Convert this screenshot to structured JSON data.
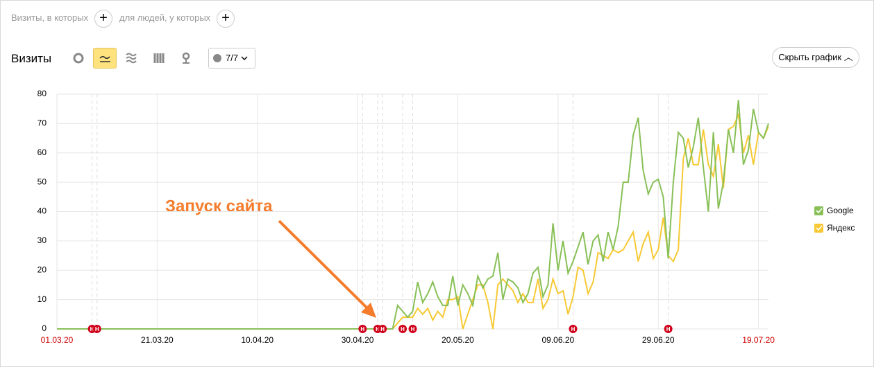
{
  "filters": {
    "visits_label": "Визиты, в которых",
    "people_label": "для людей, у которых"
  },
  "toolbar": {
    "title": "Визиты",
    "notes_filter": "7/7",
    "hide_chart": "Скрыть график"
  },
  "annotation": "Запуск сайта",
  "note_label": "Н",
  "chart_data": {
    "type": "line",
    "categories": [
      "01.03.20",
      null,
      null,
      null,
      null,
      null,
      null,
      null,
      null,
      null,
      null,
      null,
      null,
      null,
      null,
      null,
      null,
      null,
      null,
      null,
      "21.03.20",
      null,
      null,
      null,
      null,
      null,
      null,
      null,
      null,
      null,
      null,
      null,
      null,
      null,
      null,
      null,
      null,
      null,
      null,
      null,
      "10.04.20",
      null,
      null,
      null,
      null,
      null,
      null,
      null,
      null,
      null,
      null,
      null,
      null,
      null,
      null,
      null,
      null,
      null,
      null,
      null,
      "30.04.20",
      null,
      null,
      null,
      null,
      null,
      null,
      null,
      null,
      null,
      null,
      null,
      null,
      null,
      null,
      null,
      null,
      null,
      null,
      null,
      "20.05.20",
      null,
      null,
      null,
      null,
      null,
      null,
      null,
      null,
      null,
      null,
      null,
      null,
      null,
      null,
      null,
      null,
      null,
      null,
      null,
      "09.06.20",
      null,
      null,
      null,
      null,
      null,
      null,
      null,
      null,
      null,
      null,
      null,
      null,
      null,
      null,
      null,
      null,
      null,
      null,
      null,
      "29.06.20",
      null,
      null,
      null,
      null,
      null,
      null,
      null,
      null,
      null,
      null,
      null,
      null,
      null,
      null,
      null,
      null,
      null,
      null,
      null,
      "19.07.20",
      null,
      null
    ],
    "series": [
      {
        "name": "Google",
        "color": "#88c057",
        "values": [
          0,
          0,
          0,
          0,
          0,
          0,
          0,
          0,
          0,
          0,
          0,
          0,
          0,
          0,
          0,
          0,
          0,
          0,
          0,
          0,
          0,
          0,
          0,
          0,
          0,
          0,
          0,
          0,
          0,
          0,
          0,
          0,
          0,
          0,
          0,
          0,
          0,
          0,
          0,
          0,
          0,
          0,
          0,
          0,
          0,
          0,
          0,
          0,
          0,
          0,
          0,
          0,
          0,
          0,
          0,
          0,
          0,
          0,
          0,
          0,
          0,
          0,
          0,
          0,
          0,
          0,
          0,
          0,
          8,
          6,
          4,
          6,
          16,
          9,
          12,
          16,
          11,
          8,
          8,
          18,
          8,
          15,
          12,
          8,
          18,
          14,
          17,
          18,
          26,
          10,
          17,
          16,
          14,
          9,
          12,
          19,
          21,
          11,
          15,
          36,
          20,
          30,
          19,
          23,
          28,
          33,
          22,
          30,
          32,
          23,
          33,
          27,
          35,
          50,
          50,
          66,
          72,
          54,
          46,
          50,
          51,
          45,
          24,
          50,
          67,
          65,
          55,
          62,
          72,
          55,
          40,
          67,
          41,
          50,
          68,
          60,
          78,
          56,
          61,
          75,
          67,
          65,
          70
        ]
      },
      {
        "name": "Яндекс",
        "color": "#f7c934",
        "values": [
          0,
          0,
          0,
          0,
          0,
          0,
          0,
          0,
          0,
          0,
          0,
          0,
          0,
          0,
          0,
          0,
          0,
          0,
          0,
          0,
          0,
          0,
          0,
          0,
          0,
          0,
          0,
          0,
          0,
          0,
          0,
          0,
          0,
          0,
          0,
          0,
          0,
          0,
          0,
          0,
          0,
          0,
          0,
          0,
          0,
          0,
          0,
          0,
          0,
          0,
          0,
          0,
          0,
          0,
          0,
          0,
          0,
          0,
          0,
          0,
          0,
          0,
          0,
          0,
          0,
          0,
          0,
          0,
          2,
          4,
          4,
          4,
          7,
          5,
          7,
          3,
          6,
          4,
          10,
          10,
          11,
          0,
          5,
          10,
          15,
          15,
          9,
          0,
          15,
          17,
          15,
          13,
          9,
          12,
          9,
          9,
          17,
          7,
          10,
          17,
          12,
          13,
          5,
          11,
          21,
          20,
          12,
          16,
          26,
          25,
          24,
          27,
          26,
          27,
          30,
          33,
          23,
          29,
          33,
          24,
          27,
          38,
          25,
          23,
          27,
          58,
          65,
          56,
          56,
          68,
          56,
          52,
          63,
          48,
          68,
          69,
          73,
          60,
          66,
          56,
          67,
          65,
          69
        ]
      }
    ],
    "ylim": [
      0,
      80
    ],
    "yticks": [
      0,
      10,
      20,
      30,
      40,
      50,
      60,
      70,
      80
    ],
    "grid": true,
    "legend": "right"
  }
}
